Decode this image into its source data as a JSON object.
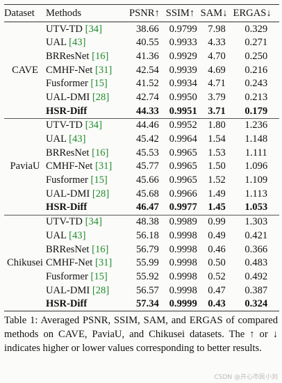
{
  "table": {
    "columns": [
      "Dataset",
      "Methods",
      "PSNR↑",
      "SSIM↑",
      "SAM↓",
      "ERGAS↓"
    ],
    "groups": [
      {
        "dataset": "CAVE",
        "rows": [
          {
            "method": "UTV-TD",
            "ref": "[34]",
            "psnr": "38.66",
            "ssim": "0.9799",
            "sam": "7.98",
            "ergas": "0.329"
          },
          {
            "method": "UAL",
            "ref": "[43]",
            "psnr": "40.55",
            "ssim": "0.9933",
            "sam": "4.33",
            "ergas": "0.271"
          },
          {
            "method": "BRResNet",
            "ref": "[16]",
            "psnr": "41.36",
            "ssim": "0.9929",
            "sam": "4.70",
            "ergas": "0.250"
          },
          {
            "method": "CMHF-Net",
            "ref": "[31]",
            "psnr": "42.54",
            "ssim": "0.9939",
            "sam": "4.69",
            "ergas": "0.216"
          },
          {
            "method": "Fusformer",
            "ref": "[15]",
            "psnr": "41.52",
            "ssim": "0.9934",
            "sam": "4.71",
            "ergas": "0.243"
          },
          {
            "method": "UAL-DMI",
            "ref": "[28]",
            "psnr": "42.74",
            "ssim": "0.9950",
            "sam": "3.79",
            "ergas": "0.213"
          },
          {
            "method": "HSR-Diff",
            "ref": "",
            "psnr": "44.33",
            "ssim": "0.9951",
            "sam": "3.71",
            "ergas": "0.179",
            "best": true
          }
        ]
      },
      {
        "dataset": "PaviaU",
        "rows": [
          {
            "method": "UTV-TD",
            "ref": "[34]",
            "psnr": "44.46",
            "ssim": "0.9952",
            "sam": "1.80",
            "ergas": "1.236"
          },
          {
            "method": "UAL",
            "ref": "[43]",
            "psnr": "45.42",
            "ssim": "0.9964",
            "sam": "1.54",
            "ergas": "1.148"
          },
          {
            "method": "BRResNet",
            "ref": "[16]",
            "psnr": "45.53",
            "ssim": "0.9965",
            "sam": "1.53",
            "ergas": "1.111"
          },
          {
            "method": "CMHF-Net",
            "ref": "[31]",
            "psnr": "45.77",
            "ssim": "0.9965",
            "sam": "1.50",
            "ergas": "1.096"
          },
          {
            "method": "Fusformer",
            "ref": "[15]",
            "psnr": "45.66",
            "ssim": "0.9965",
            "sam": "1.52",
            "ergas": "1.109"
          },
          {
            "method": "UAL-DMI",
            "ref": "[28]",
            "psnr": "45.68",
            "ssim": "0.9966",
            "sam": "1.49",
            "ergas": "1.113"
          },
          {
            "method": "HSR-Diff",
            "ref": "",
            "psnr": "46.47",
            "ssim": "0.9977",
            "sam": "1.45",
            "ergas": "1.053",
            "best": true
          }
        ]
      },
      {
        "dataset": "Chikusei",
        "rows": [
          {
            "method": "UTV-TD",
            "ref": "[34]",
            "psnr": "48.38",
            "ssim": "0.9989",
            "sam": "0.99",
            "ergas": "1.303"
          },
          {
            "method": "UAL",
            "ref": "[43]",
            "psnr": "56.18",
            "ssim": "0.9998",
            "sam": "0.49",
            "ergas": "0.421"
          },
          {
            "method": "BRResNet",
            "ref": "[16]",
            "psnr": "56.79",
            "ssim": "0.9998",
            "sam": "0.46",
            "ergas": "0.366"
          },
          {
            "method": "CMHF-Net",
            "ref": "[31]",
            "psnr": "55.99",
            "ssim": "0.9998",
            "sam": "0.50",
            "ergas": "0.483"
          },
          {
            "method": "Fusformer",
            "ref": "[15]",
            "psnr": "55.92",
            "ssim": "0.9998",
            "sam": "0.52",
            "ergas": "0.492"
          },
          {
            "method": "UAL-DMI",
            "ref": "[28]",
            "psnr": "56.57",
            "ssim": "0.9998",
            "sam": "0.47",
            "ergas": "0.387"
          },
          {
            "method": "HSR-Diff",
            "ref": "",
            "psnr": "57.34",
            "ssim": "0.9999",
            "sam": "0.43",
            "ergas": "0.324",
            "best": true
          }
        ]
      }
    ]
  },
  "caption": "Table 1: Averaged PSNR, SSIM, SAM, and ERGAS of compared methods on CAVE, PaviaU, and Chikusei datasets. The ↑ or ↓ indicates higher or lower values corresponding to better results.",
  "watermark": "CSDN @开心市民小刘",
  "colors": {
    "reference": "#1f8b2c",
    "background": "#fbfbf9",
    "text": "#111111"
  }
}
